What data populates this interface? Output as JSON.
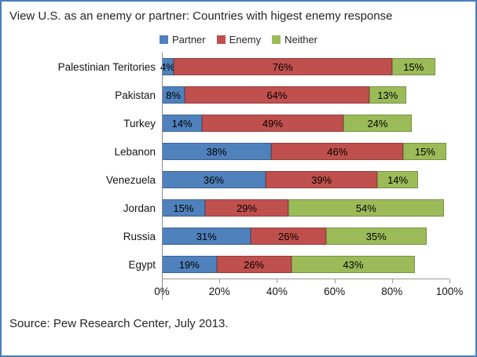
{
  "source_note": "Source: Pew Research Center, July 2013.",
  "chart_data": {
    "type": "bar",
    "orientation": "horizontal",
    "stacked": true,
    "title": "View U.S. as an enemy or partner: Countries with higest enemy response",
    "categories": [
      "Palestinian Teritories",
      "Pakistan",
      "Turkey",
      "Lebanon",
      "Venezuela",
      "Jordan",
      "Russia",
      "Egypt"
    ],
    "series": [
      {
        "name": "Partner",
        "color": "#4F81BD",
        "values": [
          4,
          8,
          14,
          38,
          36,
          15,
          31,
          19
        ]
      },
      {
        "name": "Enemy",
        "color": "#C0504D",
        "values": [
          76,
          64,
          49,
          46,
          39,
          29,
          26,
          26
        ]
      },
      {
        "name": "Neither",
        "color": "#9BBB59",
        "values": [
          15,
          13,
          24,
          15,
          14,
          54,
          35,
          43
        ]
      }
    ],
    "value_suffix": "%",
    "xticks": [
      "0%",
      "20%",
      "40%",
      "60%",
      "80%",
      "100%"
    ],
    "xlim": [
      0,
      100
    ],
    "legend_position": "top",
    "grid": false,
    "data_labels": "inside"
  }
}
